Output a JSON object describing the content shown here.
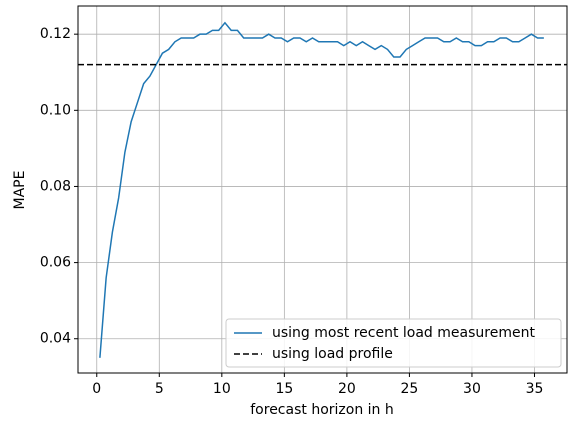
{
  "chart_data": {
    "type": "line",
    "xlabel": "forecast horizon in h",
    "ylabel": "MAPE",
    "xlim": [
      -1.5,
      37.6
    ],
    "ylim": [
      0.031,
      0.1274
    ],
    "xticks": [
      0,
      5,
      10,
      15,
      20,
      25,
      30,
      35
    ],
    "yticks": [
      0.04,
      0.06,
      0.08,
      {
        "value": 0.1,
        "label": "0.10"
      },
      0.12
    ],
    "grid": true,
    "legend": "lower right",
    "x": [
      0.25,
      0.75,
      1.25,
      1.75,
      2.25,
      2.75,
      3.25,
      3.75,
      4.25,
      4.75,
      5.25,
      5.75,
      6.25,
      6.75,
      7.25,
      7.75,
      8.25,
      8.75,
      9.25,
      9.75,
      10.25,
      10.75,
      11.25,
      11.75,
      12.25,
      12.75,
      13.25,
      13.75,
      14.25,
      14.75,
      15.25,
      15.75,
      16.25,
      16.75,
      17.25,
      17.75,
      18.25,
      18.75,
      19.25,
      19.75,
      20.25,
      20.75,
      21.25,
      21.75,
      22.25,
      22.75,
      23.25,
      23.75,
      24.25,
      24.75,
      25.25,
      25.75,
      26.25,
      26.75,
      27.25,
      27.75,
      28.25,
      28.75,
      29.25,
      29.75,
      30.25,
      30.75,
      31.25,
      31.75,
      32.25,
      32.75,
      33.25,
      33.75,
      34.25,
      34.75,
      35.25,
      35.75
    ],
    "series": [
      {
        "name": "using most recent load measurement",
        "color": "#1f77b4",
        "values": [
          0.035,
          0.056,
          0.068,
          0.077,
          0.089,
          0.097,
          0.102,
          0.107,
          0.109,
          0.112,
          0.115,
          0.116,
          0.118,
          0.119,
          0.119,
          0.119,
          0.12,
          0.12,
          0.121,
          0.121,
          0.123,
          0.121,
          0.121,
          0.119,
          0.119,
          0.119,
          0.119,
          0.12,
          0.119,
          0.119,
          0.118,
          0.119,
          0.119,
          0.118,
          0.119,
          0.118,
          0.118,
          0.118,
          0.118,
          0.117,
          0.118,
          0.117,
          0.118,
          0.117,
          0.116,
          0.117,
          0.116,
          0.114,
          0.114,
          0.116,
          0.117,
          0.118,
          0.119,
          0.119,
          0.119,
          0.118,
          0.118,
          0.119,
          0.118,
          0.118,
          0.117,
          0.117,
          0.118,
          0.118,
          0.119,
          0.119,
          0.118,
          0.118,
          0.119,
          0.12,
          0.119,
          0.119
        ]
      },
      {
        "name": "using load profile",
        "color": "#000000",
        "dash": true,
        "y": 0.112
      }
    ]
  }
}
